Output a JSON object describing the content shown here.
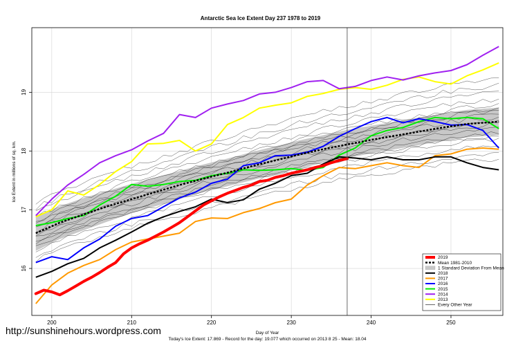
{
  "chart_data": {
    "type": "line",
    "title": "Antarctic Sea Ice Extent Day 237 1978 to 2019",
    "xlabel": "Day of Year",
    "ylabel": "Ice Extent in millions of sq. km.",
    "footer": "Today's Ice Extent: 17.869   - Record for the day: 19.077 which occurred on 2013 8 25   - Mean: 18.04",
    "watermark": "http://sunshinehours.wordpress.com",
    "xlim": [
      197.5,
      256.5
    ],
    "ylim": [
      15.2,
      20.1
    ],
    "xticks": [
      200,
      210,
      220,
      230,
      240,
      250
    ],
    "yticks": [
      16,
      17,
      18,
      19
    ],
    "ytick_labels": [
      "16",
      "17",
      "18",
      "19"
    ],
    "vline_day": 237,
    "legend_position": "bottom-right",
    "legend": [
      {
        "label": "2019",
        "color": "#ff0000",
        "width": 4,
        "dash": ""
      },
      {
        "label": "Mean 1981-2010",
        "color": "#000000",
        "width": 2.5,
        "dash": "3,2"
      },
      {
        "label": "1 Standard Deviation From Mean",
        "color": "#c8c8c8",
        "band": true
      },
      {
        "label": "2018",
        "color": "#000000",
        "width": 2
      },
      {
        "label": "2017",
        "color": "#ff9900",
        "width": 2
      },
      {
        "label": "2016",
        "color": "#0000ff",
        "width": 2
      },
      {
        "label": "2015",
        "color": "#00ee00",
        "width": 2
      },
      {
        "label": "2014",
        "color": "#a020f0",
        "width": 2
      },
      {
        "label": "2013",
        "color": "#ffff00",
        "width": 2
      },
      {
        "label": "Every Other Year",
        "color": "#000000",
        "width": 0.6
      }
    ],
    "mean": {
      "name": "Mean 1981-2010",
      "x": [
        198,
        201,
        204,
        207,
        210,
        213,
        216,
        219,
        222,
        225,
        228,
        231,
        234,
        237,
        240,
        243,
        246,
        249,
        252,
        256
      ],
      "y": [
        16.6,
        16.78,
        16.92,
        17.06,
        17.18,
        17.3,
        17.42,
        17.53,
        17.63,
        17.74,
        17.84,
        17.94,
        18.03,
        18.11,
        18.19,
        18.26,
        18.33,
        18.4,
        18.46,
        18.5
      ]
    },
    "std_band": {
      "x": [
        198,
        201,
        204,
        207,
        210,
        213,
        216,
        219,
        222,
        225,
        228,
        231,
        234,
        237,
        240,
        243,
        246,
        249,
        252,
        256
      ],
      "lower": [
        16.3,
        16.5,
        16.65,
        16.8,
        16.94,
        17.06,
        17.18,
        17.3,
        17.4,
        17.5,
        17.6,
        17.7,
        17.8,
        17.88,
        17.96,
        18.03,
        18.1,
        18.17,
        18.23,
        18.27
      ],
      "upper": [
        16.9,
        17.06,
        17.2,
        17.32,
        17.44,
        17.55,
        17.66,
        17.77,
        17.87,
        17.98,
        18.08,
        18.18,
        18.27,
        18.36,
        18.43,
        18.5,
        18.57,
        18.64,
        18.7,
        18.74
      ]
    },
    "series": [
      {
        "name": "2013",
        "color": "#ffff00",
        "width": 2,
        "x": [
          198,
          200,
          202,
          204,
          206,
          208,
          210,
          212,
          214,
          216,
          218,
          220,
          222,
          224,
          226,
          228,
          230,
          232,
          234,
          236,
          238,
          240,
          242,
          244,
          246,
          248,
          250,
          252,
          254,
          256
        ],
        "y": [
          16.88,
          17.0,
          17.32,
          17.25,
          17.43,
          17.65,
          17.82,
          18.12,
          18.13,
          18.18,
          18.0,
          18.12,
          18.45,
          18.57,
          18.73,
          18.78,
          18.82,
          18.93,
          18.98,
          19.05,
          19.08,
          19.05,
          19.12,
          19.22,
          19.26,
          19.18,
          19.14,
          19.28,
          19.38,
          19.5
        ]
      },
      {
        "name": "2014",
        "color": "#a020f0",
        "width": 2,
        "x": [
          198,
          200,
          202,
          204,
          206,
          208,
          210,
          212,
          214,
          216,
          218,
          220,
          222,
          224,
          226,
          228,
          230,
          232,
          234,
          236,
          238,
          240,
          242,
          244,
          246,
          248,
          250,
          252,
          254,
          256
        ],
        "y": [
          16.9,
          17.18,
          17.42,
          17.6,
          17.8,
          17.92,
          18.02,
          18.17,
          18.3,
          18.62,
          18.57,
          18.73,
          18.8,
          18.86,
          18.97,
          19.0,
          19.08,
          19.18,
          19.2,
          19.06,
          19.1,
          19.2,
          19.26,
          19.21,
          19.28,
          19.33,
          19.37,
          19.47,
          19.63,
          19.78
        ]
      },
      {
        "name": "2015",
        "color": "#00ee00",
        "width": 2,
        "x": [
          198,
          200,
          202,
          204,
          206,
          208,
          210,
          212,
          214,
          216,
          218,
          220,
          222,
          224,
          226,
          228,
          230,
          232,
          234,
          236,
          238,
          240,
          242,
          244,
          246,
          248,
          250,
          252,
          254,
          256
        ],
        "y": [
          16.73,
          16.78,
          16.85,
          16.9,
          17.08,
          17.23,
          17.43,
          17.4,
          17.43,
          17.48,
          17.5,
          17.58,
          17.62,
          17.68,
          17.67,
          17.68,
          17.7,
          17.67,
          17.72,
          17.93,
          18.05,
          18.26,
          18.35,
          18.4,
          18.5,
          18.57,
          18.55,
          18.57,
          18.55,
          18.38
        ]
      },
      {
        "name": "2016",
        "color": "#0000ff",
        "width": 2,
        "x": [
          198,
          200,
          202,
          204,
          206,
          208,
          210,
          212,
          214,
          216,
          218,
          220,
          222,
          224,
          226,
          228,
          230,
          232,
          234,
          236,
          238,
          240,
          242,
          244,
          246,
          248,
          250,
          252,
          254,
          256
        ],
        "y": [
          16.1,
          16.2,
          16.15,
          16.35,
          16.5,
          16.72,
          16.85,
          16.9,
          17.05,
          17.2,
          17.3,
          17.45,
          17.52,
          17.75,
          17.8,
          17.92,
          17.93,
          17.98,
          18.08,
          18.25,
          18.38,
          18.5,
          18.57,
          18.48,
          18.55,
          18.5,
          18.44,
          18.45,
          18.35,
          18.05
        ]
      },
      {
        "name": "2017",
        "color": "#ff9900",
        "width": 2,
        "x": [
          198,
          200,
          202,
          204,
          206,
          208,
          210,
          212,
          214,
          216,
          218,
          220,
          222,
          224,
          226,
          228,
          230,
          232,
          234,
          236,
          238,
          240,
          242,
          244,
          246,
          248,
          250,
          252,
          254,
          256
        ],
        "y": [
          15.4,
          15.72,
          15.92,
          16.05,
          16.15,
          16.32,
          16.45,
          16.5,
          16.55,
          16.6,
          16.8,
          16.86,
          16.85,
          16.95,
          17.02,
          17.12,
          17.18,
          17.42,
          17.58,
          17.72,
          17.7,
          17.75,
          17.8,
          17.75,
          17.72,
          17.92,
          17.95,
          18.03,
          18.05,
          18.03
        ]
      },
      {
        "name": "2018",
        "color": "#000000",
        "width": 2,
        "x": [
          198,
          200,
          202,
          204,
          206,
          208,
          210,
          212,
          214,
          216,
          218,
          220,
          222,
          224,
          226,
          228,
          230,
          232,
          234,
          236,
          238,
          240,
          242,
          244,
          246,
          248,
          250,
          252,
          254,
          256
        ],
        "y": [
          15.85,
          15.95,
          16.08,
          16.17,
          16.35,
          16.48,
          16.62,
          16.77,
          16.88,
          16.97,
          17.05,
          17.18,
          17.12,
          17.17,
          17.35,
          17.45,
          17.58,
          17.62,
          17.78,
          17.9,
          17.88,
          17.85,
          17.9,
          17.85,
          17.85,
          17.9,
          17.9,
          17.8,
          17.72,
          17.68
        ]
      },
      {
        "name": "2019",
        "color": "#ff0000",
        "width": 4,
        "x": [
          198,
          199,
          200,
          201,
          202,
          203,
          204,
          205,
          206,
          207,
          208,
          209,
          210,
          211,
          212,
          213,
          214,
          215,
          216,
          217,
          218,
          219,
          220,
          221,
          222,
          223,
          224,
          225,
          226,
          227,
          228,
          229,
          230,
          231,
          232,
          233,
          234,
          235,
          236,
          237
        ],
        "y": [
          15.57,
          15.63,
          15.6,
          15.55,
          15.62,
          15.7,
          15.78,
          15.85,
          15.93,
          16.02,
          16.1,
          16.25,
          16.35,
          16.42,
          16.48,
          16.55,
          16.62,
          16.7,
          16.78,
          16.88,
          16.98,
          17.08,
          17.15,
          17.22,
          17.28,
          17.33,
          17.38,
          17.42,
          17.48,
          17.5,
          17.55,
          17.58,
          17.62,
          17.65,
          17.68,
          17.72,
          17.75,
          17.8,
          17.84,
          17.869
        ]
      }
    ]
  }
}
